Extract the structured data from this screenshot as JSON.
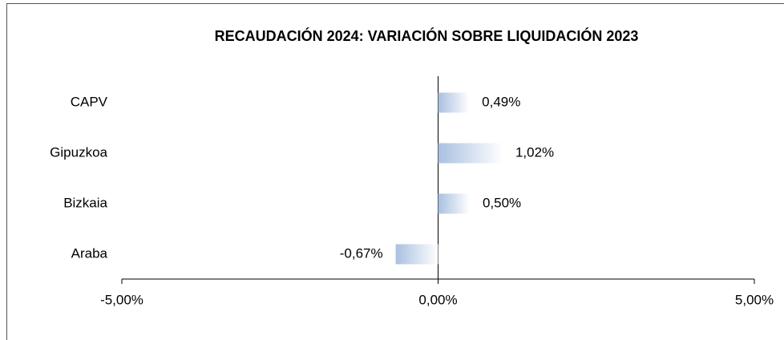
{
  "chart_data": {
    "type": "hbar",
    "title": "RECAUDACIÓN 2024: VARIACIÓN SOBRE LIQUIDACIÓN 2023",
    "categories": [
      "CAPV",
      "Gipuzkoa",
      "Bizkaia",
      "Araba"
    ],
    "values": [
      0.49,
      1.02,
      0.5,
      -0.67
    ],
    "value_labels": [
      "0,49%",
      "1,02%",
      "0,50%",
      "-0,67%"
    ],
    "color": "#a9c0e0",
    "xlim": [
      -5,
      5
    ],
    "xticks": [
      {
        "value": -5,
        "label": "-5,00%"
      },
      {
        "value": 0,
        "label": "0,00%"
      },
      {
        "value": 5,
        "label": "5,00%"
      }
    ]
  }
}
